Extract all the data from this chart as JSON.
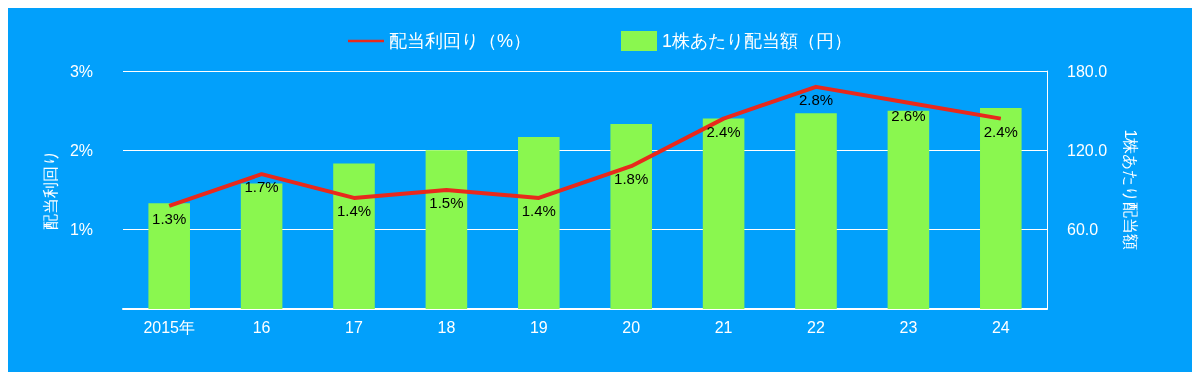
{
  "chart_data": {
    "type": "bar",
    "categories": [
      "2015年",
      "16",
      "17",
      "18",
      "19",
      "20",
      "21",
      "22",
      "23",
      "24"
    ],
    "series": [
      {
        "name": "配当利回り（%）",
        "type": "line",
        "color": "#e8291c",
        "values": [
          1.3,
          1.7,
          1.4,
          1.5,
          1.4,
          1.8,
          2.4,
          2.8,
          2.6,
          2.4
        ],
        "value_labels": [
          "1.3%",
          "1.7%",
          "1.4%",
          "1.5%",
          "1.4%",
          "1.8%",
          "2.4%",
          "2.8%",
          "2.6%",
          "2.4%"
        ],
        "marker": "none"
      },
      {
        "name": "1株あたり配当額（円）",
        "axis": "y2",
        "color": "#8af74f",
        "values": [
          80,
          95,
          110,
          120,
          130,
          140,
          144,
          148,
          150,
          152
        ]
      }
    ],
    "ylabel": "配当利回り",
    "y2label": "1株あたり配当額",
    "ylim": [
      0,
      3
    ],
    "yticks": [
      {
        "value": 1,
        "label": "1%"
      },
      {
        "value": 2,
        "label": "2%"
      },
      {
        "value": 3,
        "label": "3%"
      }
    ],
    "y2lim": [
      0,
      180
    ],
    "y2ticks": [
      {
        "value": 60,
        "label": "60.0"
      },
      {
        "value": 120,
        "label": "120.0"
      },
      {
        "value": 180,
        "label": "180.0"
      }
    ],
    "grid": "y",
    "legend": "top"
  }
}
